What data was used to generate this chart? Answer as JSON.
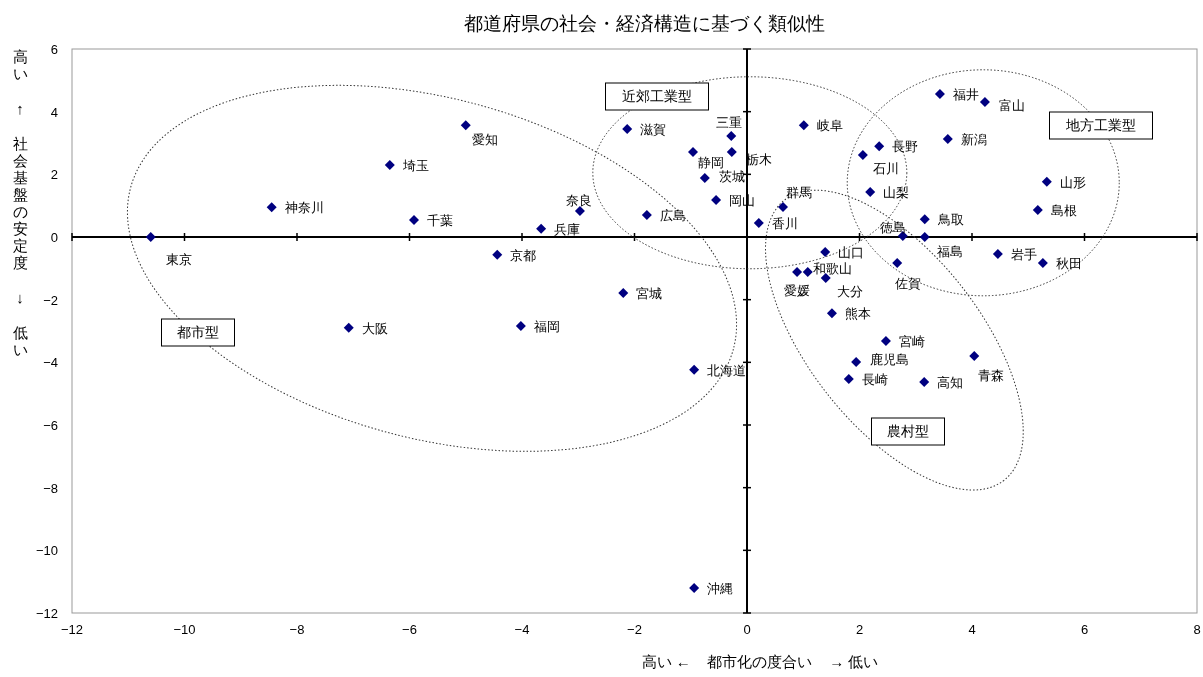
{
  "chart_data": {
    "type": "scatter",
    "title": "都道府県の社会・経済構造に基づく類似性",
    "xlabel": "高い ←    都市化の度合い    → 低い",
    "ylabel": "高い ↑ 社会基盤の安定度 ↓ 低い",
    "x": [
      -10.6,
      -8.45,
      -6.35,
      -5.0,
      -5.92,
      -2.97,
      -3.66,
      -4.44,
      -7.08,
      -4.02,
      -2.2,
      -0.94,
      -0.94,
      -2.13,
      -1.78,
      -0.28,
      -0.96,
      -0.27,
      -0.75,
      -0.55,
      0.21,
      0.64,
      1.01,
      2.06,
      2.35,
      2.19,
      3.43,
      4.23,
      3.57,
      5.33,
      5.17,
      3.16,
      2.77,
      3.16,
      4.46,
      5.26,
      1.39,
      1.08,
      0.89,
      1.4,
      2.67,
      1.51,
      2.47,
      1.94,
      1.81,
      3.15,
      4.04
    ],
    "values": [
      0.0,
      0.95,
      2.3,
      3.57,
      0.54,
      0.83,
      0.26,
      -0.57,
      -2.9,
      -2.84,
      -1.79,
      -4.24,
      -11.2,
      3.45,
      0.7,
      3.22,
      2.71,
      2.71,
      1.88,
      1.18,
      0.45,
      0.96,
      3.57,
      2.62,
      2.9,
      1.44,
      4.56,
      4.31,
      3.13,
      1.76,
      0.86,
      0.57,
      0.03,
      0.0,
      -0.54,
      -0.83,
      -0.48,
      -1.12,
      -1.12,
      -1.31,
      -0.83,
      -2.43,
      -3.32,
      -3.99,
      -4.53,
      -4.63,
      -3.8
    ],
    "value_labels": [
      "東京",
      "神奈川",
      "埼玉",
      "愛知",
      "千葉",
      "奈良",
      "兵庫",
      "京都",
      "大阪",
      "福岡",
      "宮城",
      "北海道",
      "沖縄",
      "滋賀",
      "広島",
      "三重",
      "静岡",
      "栃木",
      "茨城",
      "岡山",
      "香川",
      "群馬",
      "岐阜",
      "石川",
      "長野",
      "山梨",
      "福井",
      "富山",
      "新潟",
      "山形",
      "島根",
      "鳥取",
      "徳島",
      "福島",
      "岩手",
      "秋田",
      "山口",
      "和歌山",
      "愛媛",
      "大分",
      "佐賀",
      "熊本",
      "宮崎",
      "鹿児島",
      "長崎",
      "高知",
      "青森"
    ],
    "color": "#000080",
    "marker": "diamond",
    "annotations": [
      "近郊工業型",
      "地方工業型",
      "都市型",
      "農村型"
    ],
    "xlim": [
      -12,
      8
    ],
    "ylim": [
      -12,
      6
    ],
    "xticks": [
      -12,
      -10,
      -8,
      -6,
      -4,
      -2,
      0,
      2,
      4,
      6,
      8
    ],
    "yticks": [
      6,
      4,
      2,
      0,
      -2,
      -4,
      -6,
      -8,
      -10,
      -12
    ]
  }
}
